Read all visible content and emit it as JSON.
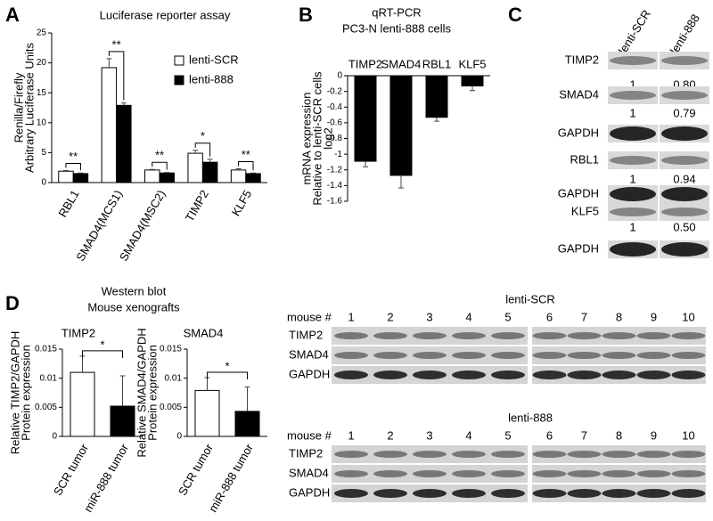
{
  "chart_data": [
    {
      "panel": "A",
      "type": "bar",
      "title": "Luciferase reporter assay",
      "ylabel": [
        "Renilla/Firefly",
        "Arbitrary Luciferase Units"
      ],
      "categories": [
        "RBL1",
        "SMAD4(MCS1)",
        "SMAD4(MSC2)",
        "TIMP2",
        "KLF5"
      ],
      "series": [
        {
          "name": "lenti-SCR",
          "color": "#ffffff",
          "values": [
            1.9,
            19.2,
            2.1,
            4.9,
            2.1
          ],
          "errors": [
            0.1,
            1.5,
            0.1,
            0.5,
            0.2
          ]
        },
        {
          "name": "lenti-888",
          "color": "#000000",
          "values": [
            1.5,
            12.9,
            1.6,
            3.4,
            1.5
          ],
          "errors": [
            0.1,
            0.4,
            0.1,
            0.5,
            0.1
          ]
        }
      ],
      "significance": [
        "**",
        "**",
        "**",
        "*",
        "**"
      ],
      "ylim": [
        0,
        25
      ],
      "yticks": [
        0,
        5,
        10,
        15,
        20,
        25
      ],
      "legend": "upper right"
    },
    {
      "panel": "B",
      "type": "bar",
      "title": [
        "qRT-PCR",
        "PC3-N lenti-888 cells"
      ],
      "ylabel": [
        "mRNA expression",
        "Relative to lenti-SCR cells",
        "log2"
      ],
      "categories": [
        "TIMP2",
        "SMAD4",
        "RBL1",
        "KLF5"
      ],
      "values": [
        -1.09,
        -1.27,
        -0.53,
        -0.13
      ],
      "errors": [
        0.07,
        0.16,
        0.05,
        0.06
      ],
      "color": "#000000",
      "ylim": [
        -1.6,
        0
      ],
      "yticks": [
        -1.6,
        -1.4,
        -1.2,
        -1,
        -0.8,
        -0.6,
        -0.4,
        -0.2,
        0
      ]
    },
    {
      "panel": "D",
      "type": "bar",
      "title": "TIMP2",
      "ylabel": [
        "Relative TIMP2/GAPDH",
        "Protein expression"
      ],
      "categories": [
        "SCR tumor",
        "miR-888 tumor"
      ],
      "values": [
        0.011,
        0.0052
      ],
      "errors": [
        0.0028,
        0.0052
      ],
      "colors": [
        "#ffffff",
        "#000000"
      ],
      "significance": "*",
      "ylim": [
        0,
        0.015
      ],
      "yticks": [
        0,
        0.005,
        0.01,
        0.015
      ]
    },
    {
      "type": "bar",
      "title": "SMAD4",
      "ylabel": [
        "Relative SMAD4/GAPDH",
        "Protein expression"
      ],
      "categories": [
        "SCR tumor",
        "miR-888 tumor"
      ],
      "values": [
        0.0079,
        0.0043
      ],
      "errors": [
        0.0022,
        0.0042
      ],
      "colors": [
        "#ffffff",
        "#000000"
      ],
      "significance": "*",
      "ylim": [
        0,
        0.015
      ],
      "yticks": [
        0,
        0.005,
        0.01,
        0.015
      ]
    }
  ],
  "d_heading": [
    "Western blot",
    "Mouse xenografts"
  ],
  "blot_c": {
    "panel": "C",
    "columns": [
      "lenti-SCR",
      "lenti-888"
    ],
    "rows": [
      {
        "label": "TIMP2",
        "quant": [
          "1",
          "0.80"
        ]
      },
      {
        "label": "SMAD4",
        "quant": [
          "1",
          "0.79"
        ]
      },
      {
        "label": "GAPDH"
      },
      {
        "label": "RBL1",
        "quant": [
          "1",
          "0.94"
        ]
      },
      {
        "label": "GAPDH"
      },
      {
        "label": "KLF5",
        "quant": [
          "1",
          "0.50"
        ]
      },
      {
        "label": "GAPDH"
      }
    ]
  },
  "blot_d": {
    "groups": [
      {
        "title": "lenti-SCR",
        "lane_label": "mouse #",
        "lanes": [
          1,
          2,
          3,
          4,
          5,
          6,
          7,
          8,
          9,
          10
        ],
        "rows": [
          "TIMP2",
          "SMAD4",
          "GAPDH"
        ]
      },
      {
        "title": "lenti-888",
        "lane_label": "mouse #",
        "lanes": [
          1,
          2,
          3,
          4,
          5,
          6,
          7,
          8,
          9,
          10
        ],
        "rows": [
          "TIMP2",
          "SMAD4",
          "GAPDH"
        ]
      }
    ]
  }
}
